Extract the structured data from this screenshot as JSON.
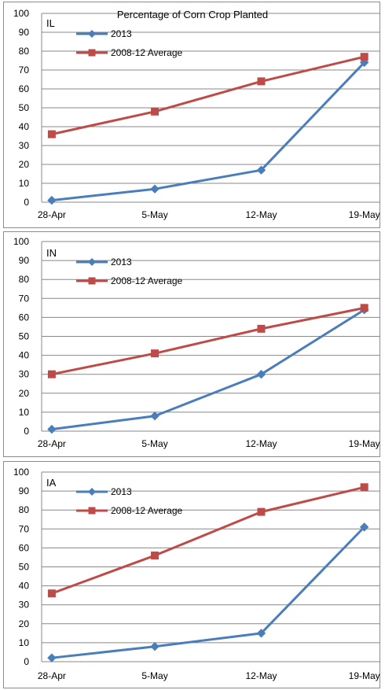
{
  "colors": {
    "series_2013": "#4a7ebb",
    "series_avg": "#be4b48",
    "grid": "#888888"
  },
  "chart_data": [
    {
      "type": "line",
      "title": "Percentage of Corn Crop Planted",
      "panel_label": "IL",
      "categories": [
        "28-Apr",
        "5-May",
        "12-May",
        "19-May"
      ],
      "ylim": [
        0,
        100
      ],
      "yticks": [
        0,
        10,
        20,
        30,
        40,
        50,
        60,
        70,
        80,
        90,
        100
      ],
      "grid": true,
      "legend_position": "top-left",
      "series": [
        {
          "name": "2013",
          "values": [
            1,
            7,
            17,
            74
          ],
          "marker": "diamond"
        },
        {
          "name": "2008-12 Average",
          "values": [
            36,
            48,
            64,
            77
          ],
          "marker": "square"
        }
      ]
    },
    {
      "type": "line",
      "title": "",
      "panel_label": "IN",
      "categories": [
        "28-Apr",
        "5-May",
        "12-May",
        "19-May"
      ],
      "ylim": [
        0,
        100
      ],
      "yticks": [
        0,
        10,
        20,
        30,
        40,
        50,
        60,
        70,
        80,
        90,
        100
      ],
      "grid": true,
      "legend_position": "top-left",
      "series": [
        {
          "name": "2013",
          "values": [
            1,
            8,
            30,
            64
          ],
          "marker": "diamond"
        },
        {
          "name": "2008-12 Average",
          "values": [
            30,
            41,
            54,
            65
          ],
          "marker": "square"
        }
      ]
    },
    {
      "type": "line",
      "title": "",
      "panel_label": "IA",
      "categories": [
        "28-Apr",
        "5-May",
        "12-May",
        "19-May"
      ],
      "ylim": [
        0,
        100
      ],
      "yticks": [
        0,
        10,
        20,
        30,
        40,
        50,
        60,
        70,
        80,
        90,
        100
      ],
      "grid": true,
      "legend_position": "top-left",
      "series": [
        {
          "name": "2013",
          "values": [
            2,
            8,
            15,
            71
          ],
          "marker": "diamond"
        },
        {
          "name": "2008-12 Average",
          "values": [
            36,
            56,
            79,
            92
          ],
          "marker": "square"
        }
      ]
    }
  ]
}
